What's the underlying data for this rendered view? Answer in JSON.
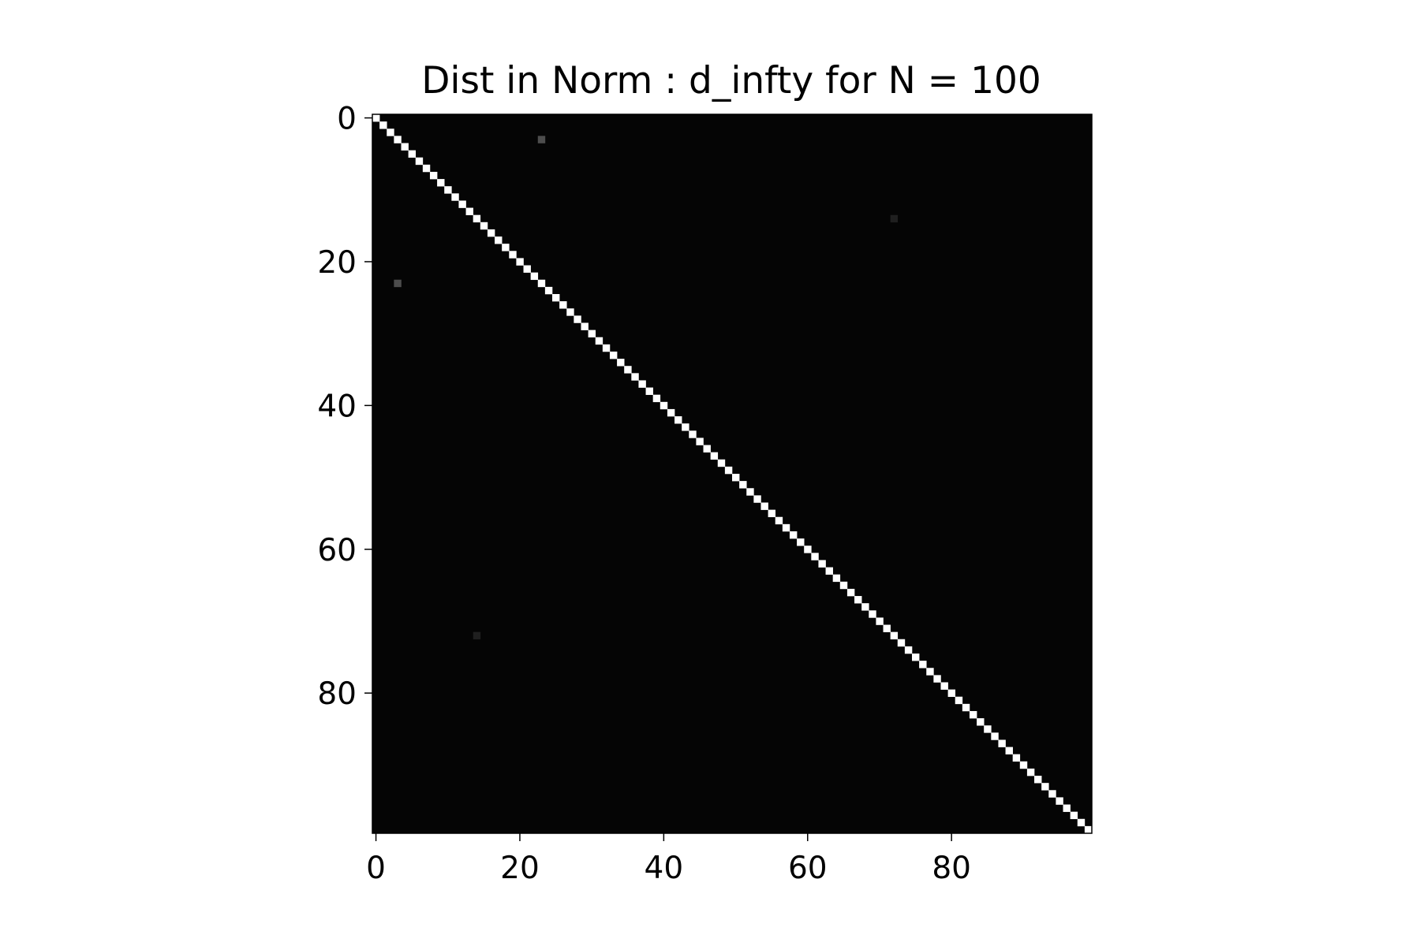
{
  "chart_data": {
    "type": "heatmap",
    "title": "Dist in Norm : d_infty for N = 100",
    "xlabel": "",
    "ylabel": "",
    "n": 100,
    "colormap": "gray",
    "vmin": 0,
    "vmax": 1,
    "background_value": 0.02,
    "diagonal_value": 1.0,
    "xlim": [
      -0.5,
      99.5
    ],
    "ylim": [
      99.5,
      -0.5
    ],
    "x_ticks": [
      0,
      20,
      40,
      60,
      80
    ],
    "y_ticks": [
      0,
      20,
      40,
      60,
      80
    ],
    "grid": false,
    "highlighted_cells": [
      {
        "row": 3,
        "col": 23,
        "value": 0.3
      },
      {
        "row": 23,
        "col": 3,
        "value": 0.3
      },
      {
        "row": 14,
        "col": 72,
        "value": 0.12
      },
      {
        "row": 72,
        "col": 14,
        "value": 0.12
      }
    ]
  }
}
